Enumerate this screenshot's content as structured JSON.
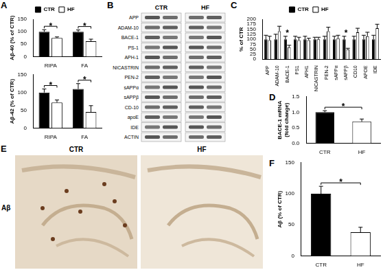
{
  "chart_data": [
    {
      "panel": "A",
      "type": "bar",
      "y_label": "Aβ-40 (% of CTR)",
      "categories": [
        "RIPA",
        "FA"
      ],
      "series": [
        {
          "name": "CTR",
          "color": "#000000",
          "values": [
            100,
            100
          ],
          "errors": [
            8,
            7
          ]
        },
        {
          "name": "HF",
          "color": "#ffffff",
          "values": [
            75,
            62
          ],
          "errors": [
            4,
            8
          ]
        }
      ],
      "ylim": [
        0,
        150
      ],
      "yticks": [
        0,
        50,
        100,
        150
      ],
      "grid": false,
      "legend": "top",
      "annotations": [
        {
          "text": "*",
          "categories": [
            "RIPA"
          ]
        },
        {
          "text": "*",
          "categories": [
            "FA"
          ]
        }
      ]
    },
    {
      "type": "bar",
      "y_label": "Aβ-42 (% of CTR)",
      "categories": [
        "RIPA",
        "FA"
      ],
      "series": [
        {
          "name": "CTR",
          "color": "#000000",
          "values": [
            100,
            110
          ],
          "errors": [
            10,
            15
          ]
        },
        {
          "name": "HF",
          "color": "#ffffff",
          "values": [
            72,
            45
          ],
          "errors": [
            7,
            18
          ]
        }
      ],
      "ylim": [
        0,
        150
      ],
      "yticks": [
        0,
        50,
        100,
        150
      ],
      "grid": false,
      "annotations": [
        {
          "text": "*",
          "categories": [
            "RIPA"
          ]
        },
        {
          "text": "*",
          "categories": [
            "FA"
          ]
        }
      ]
    },
    {
      "panel": "C",
      "type": "bar",
      "y_label": "% of CTR",
      "categories": [
        "APP",
        "ADAM-10",
        "BACE-1",
        "PS1",
        "APH1",
        "NICASTRIN",
        "PEN-2",
        "sAPPα",
        "sAPPβ",
        "CD10",
        "APOE",
        "IDE"
      ],
      "series": [
        {
          "name": "CTR",
          "color": "#000000",
          "values": [
            100,
            100,
            100,
            100,
            100,
            100,
            100,
            100,
            100,
            100,
            100,
            100
          ],
          "errors": [
            20,
            25,
            15,
            15,
            15,
            10,
            15,
            15,
            15,
            15,
            20,
            20
          ]
        },
        {
          "name": "HF",
          "color": "#ffffff",
          "values": [
            95,
            140,
            60,
            95,
            95,
            100,
            140,
            105,
            50,
            135,
            115,
            155
          ],
          "errors": [
            20,
            25,
            10,
            15,
            10,
            10,
            20,
            15,
            5,
            20,
            20,
            20
          ]
        }
      ],
      "ylim": [
        0,
        200
      ],
      "yticks": [
        0,
        25,
        50,
        75,
        100,
        125,
        150,
        175,
        200
      ],
      "grid": false,
      "legend": "top",
      "annotations": [
        {
          "text": "*",
          "category": "BACE-1"
        },
        {
          "text": "*",
          "category": "sAPPβ"
        }
      ]
    },
    {
      "panel": "D",
      "type": "bar",
      "y_label": [
        "BACE-1 mRNA",
        "(fold change)"
      ],
      "categories": [
        "CTR",
        "HF"
      ],
      "values": [
        1.0,
        0.7
      ],
      "errors": [
        0.05,
        0.08
      ],
      "colors": [
        "#000000",
        "#ffffff"
      ],
      "ylim": [
        0,
        1.5
      ],
      "yticks": [
        {
          "value": 0,
          "label": "0.0"
        },
        0.5,
        {
          "value": 1,
          "label": "1.0"
        },
        1.5
      ],
      "grid": false,
      "annotations": [
        {
          "text": "*",
          "categories": [
            "CTR",
            "HF"
          ]
        }
      ]
    },
    {
      "panel": "F",
      "type": "bar",
      "y_label": "Aβ (% of CTR)",
      "categories": [
        "CTR",
        "HF"
      ],
      "values": [
        100,
        38
      ],
      "errors": [
        12,
        8
      ],
      "colors": [
        "#000000",
        "#ffffff"
      ],
      "ylim": [
        0,
        150
      ],
      "yticks": [
        0,
        50,
        100,
        150
      ],
      "grid": false,
      "annotations": [
        {
          "text": "*",
          "categories": [
            "CTR",
            "HF"
          ]
        }
      ]
    }
  ],
  "blot": {
    "panel": "B",
    "columns": [
      "CTR",
      "HF"
    ],
    "rows": [
      "APP",
      "ADAM-10",
      "BACE-1",
      "PS-1",
      "APH-1",
      "NICASTRIN",
      "PEN-2",
      "sAPPα",
      "sAPPβ",
      "CD-10",
      "apoE",
      "IDE",
      "ACTIN"
    ]
  },
  "histology": {
    "panel": "E",
    "label": "Aβ",
    "columns": [
      "CTR",
      "HF"
    ]
  }
}
